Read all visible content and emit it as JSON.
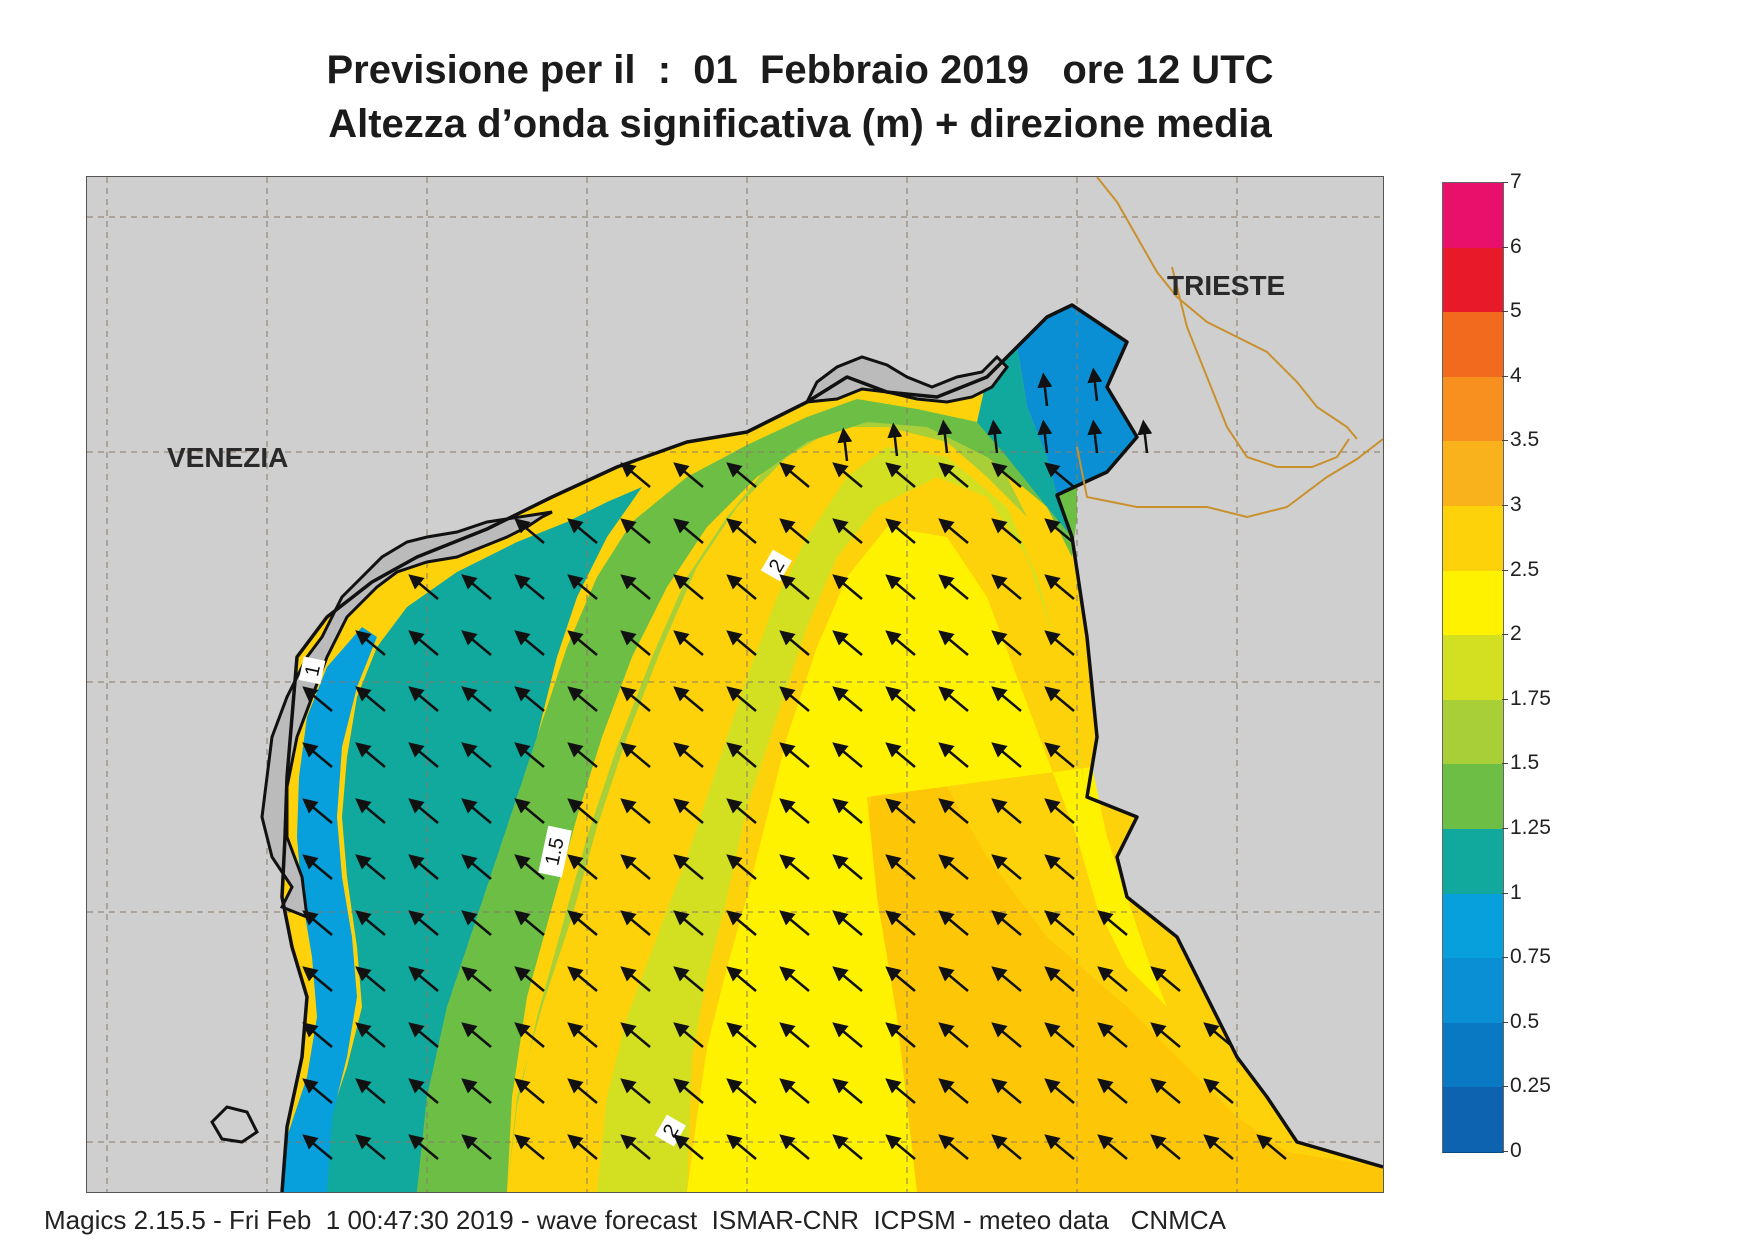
{
  "title": {
    "line1": "Previsione per il  :  01  Febbraio 2019   ore 12 UTC",
    "line2": "Altezza d’onda significativa (m) + direzione media"
  },
  "map": {
    "cities": [
      "VENEZIA",
      "TRIESTE"
    ],
    "contour_labels": [
      "1",
      "1.5",
      "2",
      "2"
    ],
    "arrow_direction": "north-west (towards upper-left)"
  },
  "legend": {
    "ticks": [
      "7",
      "6",
      "5",
      "4",
      "3.5",
      "3",
      "2.5",
      "2",
      "1.75",
      "1.5",
      "1.25",
      "1",
      "0.75",
      "0.5",
      "0.25",
      "0"
    ],
    "colors": [
      "#e8106a",
      "#e81a2a",
      "#f26a1e",
      "#f7901e",
      "#f9b21c",
      "#fdd20a",
      "#fff200",
      "#d2e021",
      "#a8cf38",
      "#6cbe45",
      "#11a89d",
      "#079fdc",
      "#0a8fd4",
      "#0a79c4",
      "#0e63b0"
    ]
  },
  "footer": "Magics 2.15.5 - Fri Feb  1 00:47:30 2019 - wave forecast  ISMAR-CNR  ICPSM - meteo data   CNMCA",
  "colors": {
    "land": "#cfcfcf",
    "coast": "#111111",
    "border": "#c8912e",
    "grid": "#8a7a66"
  }
}
